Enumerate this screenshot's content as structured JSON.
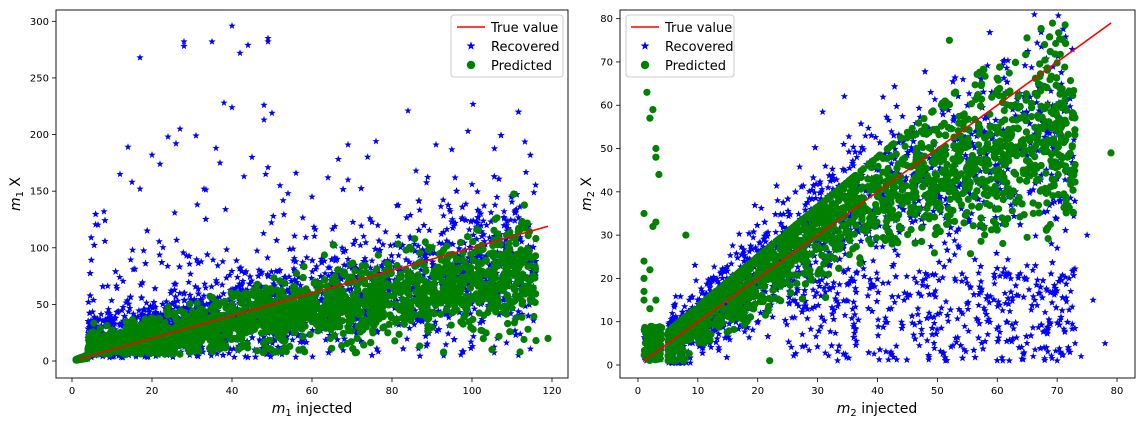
{
  "chart_data": [
    {
      "type": "scatter",
      "xlabel_sym": "m",
      "xlabel_sub": "1",
      "xlabel_rest": " injected",
      "ylabel_sym": "m",
      "ylabel_sub": "1",
      "ylabel_rest": " X",
      "xlim": [
        -4,
        124
      ],
      "ylim": [
        -15,
        310
      ],
      "xticks": [
        0,
        20,
        40,
        60,
        80,
        100,
        120
      ],
      "yticks": [
        0,
        50,
        100,
        150,
        200,
        250,
        300
      ],
      "legend_position": "upper-right",
      "legend": [
        "True value",
        "Recovered",
        "Predicted"
      ],
      "true_value_line": {
        "x": [
          2,
          119
        ],
        "y": [
          2,
          119
        ],
        "color": "#ff0000"
      },
      "series": [
        {
          "name": "Recovered",
          "marker": "star",
          "color": "#0000ff",
          "outliers": [
            [
              17,
              268
            ],
            [
              28,
              282
            ],
            [
              28,
              278
            ],
            [
              35,
              282
            ],
            [
              38,
              228
            ],
            [
              40,
              296
            ],
            [
              40,
              224
            ],
            [
              42,
              272
            ],
            [
              44,
              279
            ],
            [
              48,
              226
            ],
            [
              49,
              285
            ],
            [
              49,
              282
            ],
            [
              50,
              219
            ],
            [
              48,
              213
            ],
            [
              84,
              221
            ],
            [
              99,
              203
            ],
            [
              27,
              205
            ],
            [
              24,
              198
            ],
            [
              31,
              199
            ],
            [
              36,
              188
            ],
            [
              26,
              192
            ],
            [
              14,
              189
            ],
            [
              20,
              182
            ],
            [
              69,
              191
            ],
            [
              76,
              194
            ],
            [
              91,
              191
            ],
            [
              37,
              175
            ],
            [
              45,
              180
            ],
            [
              49,
              171
            ],
            [
              22,
              174
            ],
            [
              56,
              166
            ],
            [
              52,
              155
            ],
            [
              64,
              162
            ],
            [
              69,
              160
            ],
            [
              86,
              168
            ],
            [
              43,
              163
            ],
            [
              15,
              158
            ],
            [
              33,
              152
            ],
            [
              100,
              156
            ],
            [
              12,
              165
            ],
            [
              54,
              148
            ],
            [
              110,
              146
            ],
            [
              17,
              152
            ],
            [
              60,
              145
            ],
            [
              8,
              132
            ]
          ]
        },
        {
          "name": "Predicted",
          "marker": "circle",
          "color": "#008000",
          "outliers": [
            [
              113,
              19
            ],
            [
              116,
              18
            ],
            [
              119,
              20
            ],
            [
              112,
              8
            ],
            [
              114,
              28
            ],
            [
              111,
              38
            ],
            [
              105,
              10
            ],
            [
              108,
              45
            ]
          ]
        }
      ]
    },
    {
      "type": "scatter",
      "xlabel_sym": "m",
      "xlabel_sub": "2",
      "xlabel_rest": " injected",
      "ylabel_sym": "m",
      "ylabel_sub": "2",
      "ylabel_rest": " X",
      "xlim": [
        -3,
        83
      ],
      "ylim": [
        -3,
        82
      ],
      "xticks": [
        0,
        10,
        20,
        30,
        40,
        50,
        60,
        70,
        80
      ],
      "yticks": [
        0,
        10,
        20,
        30,
        40,
        50,
        60,
        70,
        80
      ],
      "legend_position": "upper-left",
      "legend": [
        "True value",
        "Recovered",
        "Predicted"
      ],
      "true_value_line": {
        "x": [
          1,
          79
        ],
        "y": [
          1,
          79
        ],
        "color": "#ff0000"
      },
      "series": [
        {
          "name": "Recovered",
          "marker": "star",
          "color": "#0000ff",
          "outliers": [
            [
              62,
              1
            ],
            [
              66,
              2
            ],
            [
              70,
              1
            ],
            [
              74,
              2
            ],
            [
              73,
              5
            ],
            [
              78,
              5
            ],
            [
              76,
              15
            ],
            [
              72,
              20
            ],
            [
              70,
              27
            ],
            [
              75,
              30
            ]
          ]
        },
        {
          "name": "Predicted",
          "marker": "circle",
          "color": "#008000",
          "outliers": [
            [
              1.5,
              63
            ],
            [
              2,
              57
            ],
            [
              2.5,
              59
            ],
            [
              3,
              50
            ],
            [
              3,
              48
            ],
            [
              3.5,
              44
            ],
            [
              1,
              35
            ],
            [
              3,
              33
            ],
            [
              2.5,
              32
            ],
            [
              8,
              30
            ],
            [
              52,
              75
            ],
            [
              79,
              49
            ],
            [
              1,
              20
            ],
            [
              1,
              17
            ],
            [
              1,
              15
            ],
            [
              2,
              13
            ],
            [
              3,
              15
            ],
            [
              22,
              1
            ],
            [
              2,
              22
            ],
            [
              1,
              24
            ]
          ]
        }
      ]
    }
  ]
}
